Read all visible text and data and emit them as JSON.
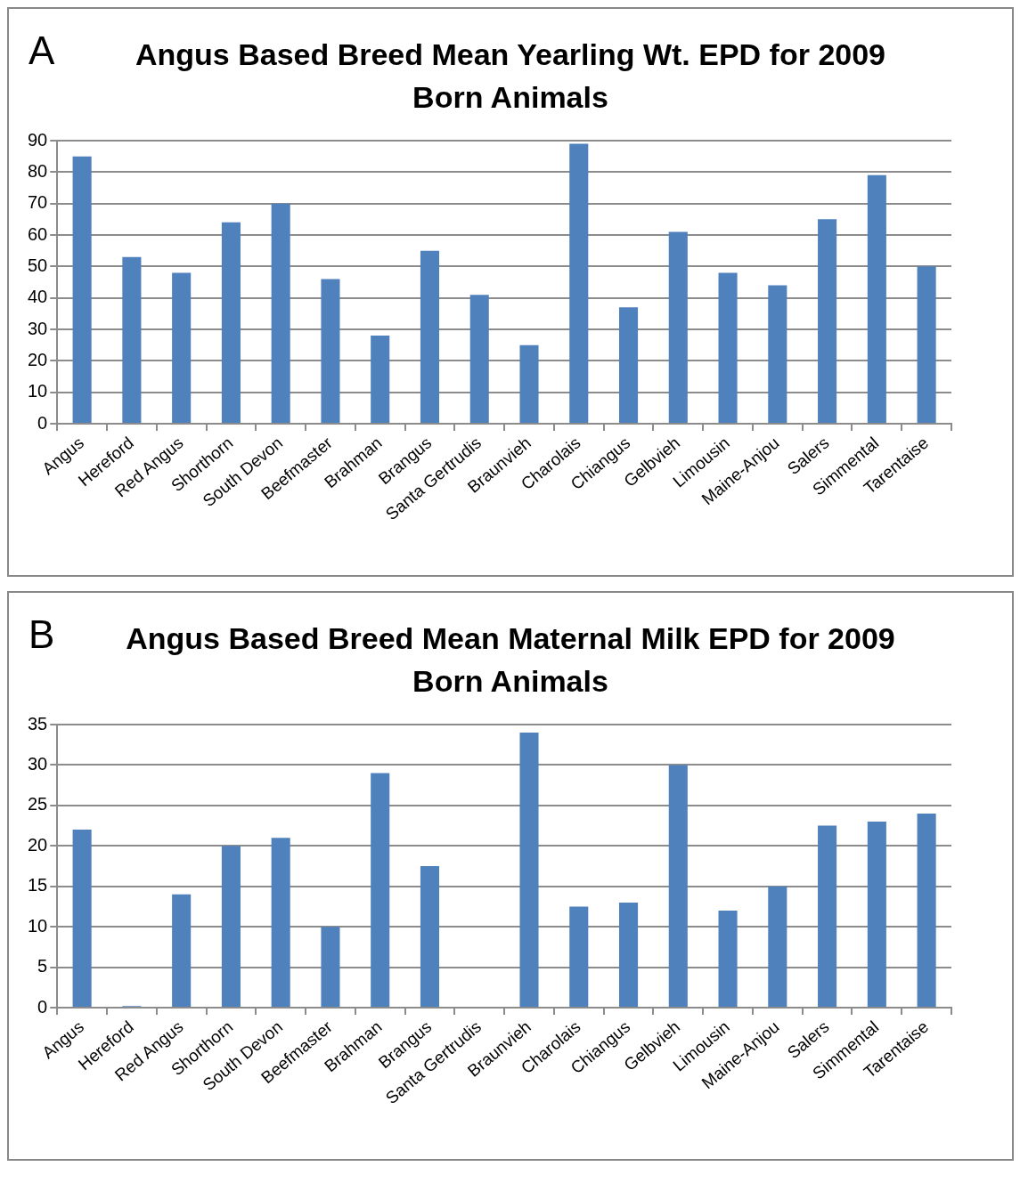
{
  "chart_data": [
    {
      "type": "bar",
      "title": "Angus Based Breed Mean Yearling Wt. EPD for 2009 Born Animals",
      "annotations": [
        "A"
      ],
      "categories": [
        "Angus",
        "Hereford",
        "Red Angus",
        "Shorthorn",
        "South Devon",
        "Beefmaster",
        "Brahman",
        "Brangus",
        "Santa Gertrudis",
        "Braunvieh",
        "Charolais",
        "Chiangus",
        "Gelbvieh",
        "Limousin",
        "Maine-Anjou",
        "Salers",
        "Simmental",
        "Tarentaise"
      ],
      "color": "#4f81bd",
      "values": [
        85,
        53,
        48,
        64,
        70,
        46,
        28,
        55,
        41,
        25,
        89,
        37,
        61,
        48,
        44,
        65,
        79,
        50
      ],
      "ylim": [
        0,
        90
      ],
      "yticks": [
        0,
        10,
        20,
        30,
        40,
        50,
        60,
        70,
        80,
        90
      ],
      "grid": "y",
      "legend": false
    },
    {
      "type": "bar",
      "title": "Angus Based Breed Mean Maternal Milk EPD for 2009 Born Animals",
      "annotations": [
        "B"
      ],
      "categories": [
        "Angus",
        "Hereford",
        "Red Angus",
        "Shorthorn",
        "South Devon",
        "Beefmaster",
        "Brahman",
        "Brangus",
        "Santa Gertrudis",
        "Braunvieh",
        "Charolais",
        "Chiangus",
        "Gelbvieh",
        "Limousin",
        "Maine-Anjou",
        "Salers",
        "Simmental",
        "Tarentaise"
      ],
      "color": "#4f81bd",
      "values": [
        22,
        0.2,
        14,
        20,
        21,
        10,
        29,
        17.5,
        null,
        34,
        12.5,
        13,
        30,
        12,
        15,
        22.5,
        23,
        24
      ],
      "ylim": [
        0,
        35
      ],
      "yticks": [
        0,
        5,
        10,
        15,
        20,
        25,
        30,
        35
      ],
      "grid": "y",
      "legend": false
    }
  ]
}
